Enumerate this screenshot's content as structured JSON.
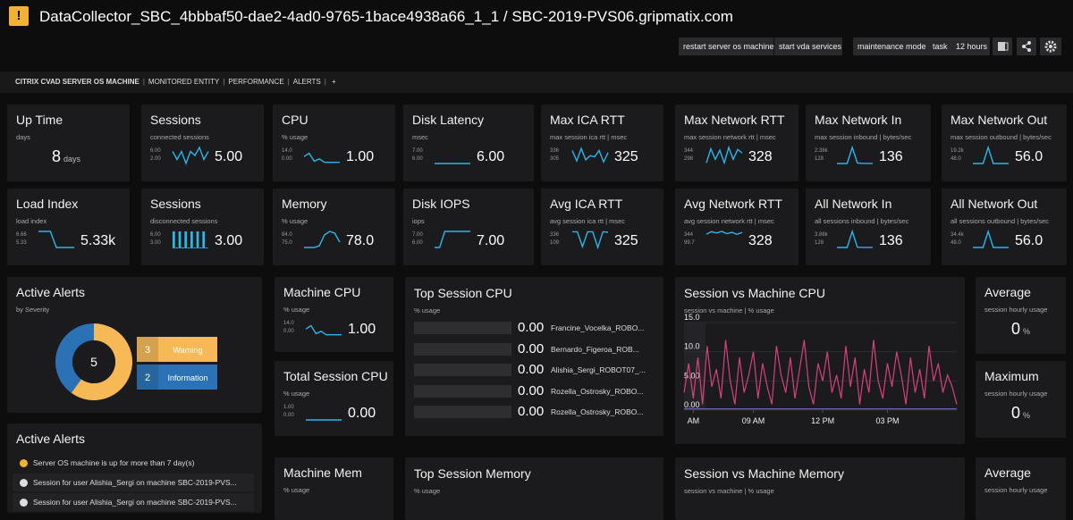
{
  "header": {
    "title": "DataCollector_SBC_4bbbaf50-dae2-4ad0-9765-1bace4938a66_1_1 / SBC-2019-PVS06.gripmatix.com"
  },
  "toolbar": [
    "restart server os machine",
    "start vda services",
    "maintenance mode",
    "task",
    "12 hours"
  ],
  "nav": [
    "CITRIX CVAD SERVER OS MACHINE",
    "MONITORED ENTITY",
    "PERFORMANCE",
    "ALERTS",
    "+"
  ],
  "tiles": [
    {
      "title": "Up Time",
      "subtitle": "days",
      "value": "8",
      "unit": "days"
    },
    {
      "title": "Sessions",
      "subtitle": "connected sessions",
      "value": "5.00",
      "spark_ticks": [
        {
          "value": 6,
          "label": "6.00"
        },
        {
          "value": 2,
          "label": "2.00"
        }
      ],
      "spark": [
        5,
        3,
        5,
        2,
        5,
        4,
        6,
        3,
        5
      ]
    },
    {
      "title": "CPU",
      "subtitle": "% usage",
      "value": "1.00",
      "spark_ticks": [
        {
          "value": 14,
          "label": "14.0"
        },
        {
          "value": 0,
          "label": "0.00"
        }
      ],
      "spark": [
        6,
        9,
        2,
        4,
        1,
        1,
        1,
        1
      ]
    },
    {
      "title": "Disk Latency",
      "subtitle": "msec",
      "value": "6.00",
      "spark_ticks": [
        {
          "value": 7,
          "label": "7.00"
        },
        {
          "value": 6,
          "label": "6.00"
        }
      ],
      "spark": [
        6,
        6,
        6,
        6,
        6,
        6
      ]
    },
    {
      "title": "Max ICA RTT",
      "subtitle": "max session ica rtt | msec",
      "value": "325",
      "spark_ticks": [
        336,
        305
      ],
      "spark": [
        330,
        310,
        334,
        312,
        320,
        318,
        330,
        308,
        326
      ]
    },
    {
      "title": "Max Network RTT",
      "subtitle": "max session network rtt | msec",
      "value": "328",
      "spark_ticks": [
        344,
        298
      ],
      "spark": [
        300,
        340,
        310,
        336,
        300,
        344,
        310,
        338,
        328
      ]
    },
    {
      "title": "Max Network In",
      "subtitle": "max session inbound | bytes/sec",
      "value": "136",
      "spark_ticks": [
        {
          "value": 2380,
          "label": "2.38k"
        },
        128
      ],
      "spark": [
        128,
        128,
        128,
        2380,
        200,
        150,
        140,
        136
      ]
    },
    {
      "title": "Max Network Out",
      "subtitle": "max session outbound | bytes/sec",
      "value": "56.0",
      "spark_ticks": [
        {
          "value": 19200,
          "label": "19.2k"
        },
        {
          "value": 48,
          "label": "48.0"
        }
      ],
      "spark": [
        48,
        48,
        48,
        19200,
        48,
        48,
        48,
        56
      ]
    },
    {
      "title": "Load Index",
      "subtitle": "load index",
      "value": "5.33k",
      "spark_ticks": [
        6.66,
        5.33
      ],
      "spark": [
        6.66,
        6.66,
        6.66,
        5.33,
        5.33,
        5.33,
        5.33
      ]
    },
    {
      "title": "Sessions",
      "subtitle": "disconnected sessions",
      "value": "3.00",
      "spark_style": "bars",
      "spark_ticks": [
        {
          "value": 6,
          "label": "6.00"
        },
        {
          "value": 3,
          "label": "3.00"
        }
      ],
      "spark": [
        6,
        3,
        6,
        3,
        6,
        3,
        6,
        3,
        6,
        3,
        6,
        3
      ]
    },
    {
      "title": "Memory",
      "subtitle": "% usage",
      "value": "78.0",
      "spark_ticks": [
        {
          "value": 84,
          "label": "84.0"
        },
        {
          "value": 75,
          "label": "75.0"
        }
      ],
      "spark": [
        75,
        75,
        75,
        76,
        82,
        84,
        83,
        78
      ]
    },
    {
      "title": "Disk IOPS",
      "subtitle": "iops",
      "value": "7.00",
      "spark_ticks": [
        {
          "value": 7,
          "label": "7.00"
        },
        {
          "value": 6,
          "label": "6.00"
        }
      ],
      "spark": [
        6,
        6,
        7,
        7,
        7,
        7,
        7,
        7
      ]
    },
    {
      "title": "Avg ICA RTT",
      "subtitle": "avg session ica rtt | msec",
      "value": "325",
      "spark_ticks": [
        336,
        109
      ],
      "spark": [
        330,
        330,
        120,
        330,
        330,
        109,
        330,
        325
      ]
    },
    {
      "title": "Avg Network RTT",
      "subtitle": "avg session network rtt | msec",
      "value": "328",
      "spark_ticks": [
        344,
        99.7
      ],
      "spark": [
        300,
        340,
        320,
        344,
        310,
        330,
        300,
        328
      ]
    },
    {
      "title": "All Network In",
      "subtitle": "all sessions inbound | bytes/sec",
      "value": "136",
      "spark_ticks": [
        {
          "value": 3880,
          "label": "3.88k"
        },
        128
      ],
      "spark": [
        128,
        128,
        128,
        3880,
        200,
        150,
        136,
        136
      ]
    },
    {
      "title": "All Network Out",
      "subtitle": "all sessions outbound | bytes/sec",
      "value": "56.0",
      "spark_ticks": [
        {
          "value": 34400,
          "label": "34.4k"
        },
        {
          "value": 48,
          "label": "48.0"
        }
      ],
      "spark": [
        48,
        48,
        48,
        34400,
        48,
        48,
        56,
        56
      ]
    },
    {
      "title": "Machine CPU",
      "subtitle": "% usage",
      "value": "1.00",
      "spark_ticks": [
        {
          "value": 14,
          "label": "14.0"
        },
        {
          "value": 0,
          "label": "0.00"
        }
      ],
      "spark": [
        6,
        9,
        2,
        4,
        1,
        1,
        1,
        1
      ]
    },
    {
      "title": "Total Session CPU",
      "subtitle": "% usage",
      "value": "0.00",
      "spark_ticks": [
        {
          "value": 1,
          "label": "1.00"
        },
        {
          "value": 0,
          "label": "0.00"
        }
      ],
      "spark": [
        0,
        0,
        0,
        0,
        0,
        0
      ]
    },
    {
      "title": "Average",
      "subtitle": "session hourly usage",
      "value": "0",
      "unit": "%"
    },
    {
      "title": "Maximum",
      "subtitle": "session hourly usage",
      "value": "0",
      "unit": "%"
    },
    {
      "title": "Machine Mem",
      "subtitle": "% usage"
    },
    {
      "title": "Average",
      "subtitle": "session hourly usage"
    }
  ],
  "alerts_donut": {
    "title": "Active Alerts",
    "subtitle": "by Severity",
    "total": "5",
    "series": [
      {
        "name": "Warning",
        "value": 3,
        "color": "#f7b955"
      },
      {
        "name": "Information",
        "value": 2,
        "color": "#2a72b5"
      }
    ]
  },
  "alerts_list": {
    "title": "Active Alerts",
    "items": [
      {
        "level": "warning",
        "text": "Server OS machine is up for more than 7 day(s)"
      },
      {
        "level": "info",
        "text": "Session for user Alishia_Sergi on machine SBC-2019-PVS..."
      },
      {
        "level": "info",
        "text": "Session for user Alishia_Sergi on machine SBC-2019-PVS..."
      }
    ]
  },
  "top_session_cpu": {
    "title": "Top Session CPU",
    "subtitle": "% usage",
    "names": [
      "Francine_Vocelka_ROBO...",
      "Bernardo_Figeroa_ROB...",
      "Alishia_Sergi_ROBOT07_...",
      "Rozella_Ostrosky_ROBO...",
      "Rozella_Ostrosky_ROBO..."
    ],
    "values": [
      0,
      0,
      0,
      0,
      0
    ],
    "value_labels": [
      "0.00",
      "0.00",
      "0.00",
      "0.00",
      "0.00"
    ]
  },
  "top_session_memory": {
    "title": "Top Session Memory",
    "subtitle": "% usage"
  },
  "session_vs_memory": {
    "title": "Session vs Machine Memory",
    "subtitle": "session vs machine | % usage"
  },
  "chart_data": {
    "type": "line",
    "title": "Session vs Machine CPU",
    "subtitle": "session vs machine | % usage",
    "ylim": [
      0,
      15
    ],
    "yticks": [
      {
        "value": 15,
        "label": "15.0"
      },
      {
        "value": 10,
        "label": "10.0"
      },
      {
        "value": 5,
        "label": "5.00"
      },
      {
        "value": 0,
        "label": "0.00"
      }
    ],
    "xlim": [
      0,
      59
    ],
    "xticks": [
      {
        "value": 2,
        "label": "AM"
      },
      {
        "value": 15,
        "label": "09 AM"
      },
      {
        "value": 30,
        "label": "12 PM"
      },
      {
        "value": 44,
        "label": "03 PM"
      }
    ],
    "series": [
      {
        "color": "#d6417f",
        "values": [
          3,
          8,
          2,
          9,
          1,
          11,
          4,
          7,
          2,
          12,
          5,
          1,
          9,
          3,
          6,
          10,
          2,
          8,
          4,
          1,
          11,
          6,
          3,
          9,
          2,
          7,
          12,
          4,
          1,
          8,
          5,
          10,
          3,
          6,
          2,
          11,
          4,
          9,
          1,
          7,
          3,
          12,
          5,
          2,
          8,
          4,
          10,
          6,
          1,
          9,
          3,
          7,
          2,
          11,
          5,
          8,
          3,
          6,
          4,
          1
        ]
      },
      {
        "color": "#7b6cd9",
        "values": [
          0.2,
          0.2,
          0.2,
          0.2,
          0.2,
          0.2,
          0.2,
          0.2,
          0.2,
          0.2,
          0.2,
          0.2,
          0.2,
          0.2,
          0.2,
          0.2,
          0.2,
          0.2,
          0.2,
          0.2,
          0.2,
          0.2,
          0.2,
          0.2,
          0.2,
          0.2,
          0.2,
          0.2,
          0.2,
          0.2,
          0.2,
          0.2,
          0.2,
          0.2,
          0.2,
          0.2,
          0.2,
          0.2,
          0.2,
          0.2,
          0.2,
          0.2,
          0.2,
          0.2,
          0.2,
          0.2,
          0.2,
          0.2,
          0.2,
          0.2,
          0.2,
          0.2,
          0.2,
          0.2,
          0.2,
          0.2,
          0.2,
          0.2,
          0.2,
          0.2
        ]
      }
    ]
  }
}
